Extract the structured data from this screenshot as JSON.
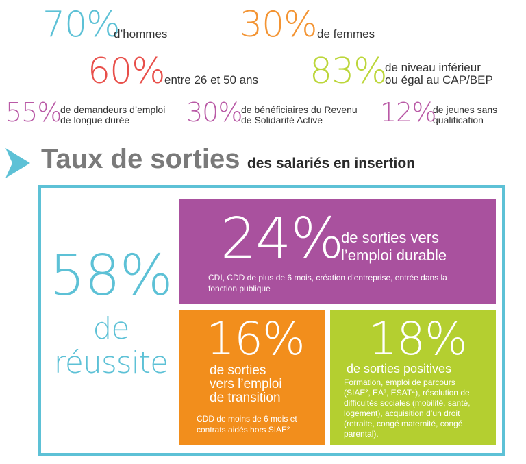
{
  "colors": {
    "blue": "#5dc1d6",
    "orange": "#f39433",
    "red": "#e84f4a",
    "green": "#bcd63a",
    "pink": "#b95aa6",
    "purple": "#a9519e",
    "orange_box": "#f28e1c",
    "green_box": "#b4cf30",
    "gray": "#7a7a7a",
    "dark": "#333333"
  },
  "stats": {
    "hommes": {
      "value": "70%",
      "label": "d’hommes"
    },
    "femmes": {
      "value": "30%",
      "label": "de femmes"
    },
    "age": {
      "value": "60%",
      "label": "entre 26 et 50 ans"
    },
    "niveau": {
      "value": "83%",
      "label_line1": "de niveau inférieur",
      "label_line2": "ou égal au CAP/BEP"
    },
    "demandeurs": {
      "value": "55%",
      "label_line1": "de demandeurs d’emploi",
      "label_line2": "de longue durée"
    },
    "rsa": {
      "value": "30%",
      "label_line1": "de bénéficiaires du Revenu",
      "label_line2": "de Solidarité Active"
    },
    "jeunes": {
      "value": "12%",
      "label_line1": "de jeunes sans",
      "label_line2": "qualification"
    }
  },
  "section": {
    "title_main": "Taux de sorties",
    "title_sub": "des salariés en insertion",
    "arrow_icon": "chevron-right-icon"
  },
  "reussite": {
    "value": "58%",
    "label_line1": "de",
    "label_line2": "réussite"
  },
  "durable": {
    "value": "24%",
    "label_line1": "de sorties vers",
    "label_line2": "l’emploi durable",
    "desc_line1": "CDI, CDD de plus de 6 mois, création d’entreprise, entrée dans la",
    "desc_line2": "fonction publique"
  },
  "transition": {
    "value": "16%",
    "label_line1": "de sorties",
    "label_line2": "vers l’emploi",
    "label_line3": "de transition",
    "desc_line1": "CDD de moins de 6 mois et",
    "desc_line2": "contrats aidés hors SIAE²"
  },
  "positives": {
    "value": "18%",
    "label": "de sorties positives",
    "desc_lines": [
      "Formation, emploi de parcours",
      "(SIAE², EA³, ESAT⁴), résolution de",
      "difficultés sociales (mobilité, santé,",
      "logement), acquisition d’un droit",
      "(retraite, congé maternité, congé",
      "parental)."
    ]
  }
}
